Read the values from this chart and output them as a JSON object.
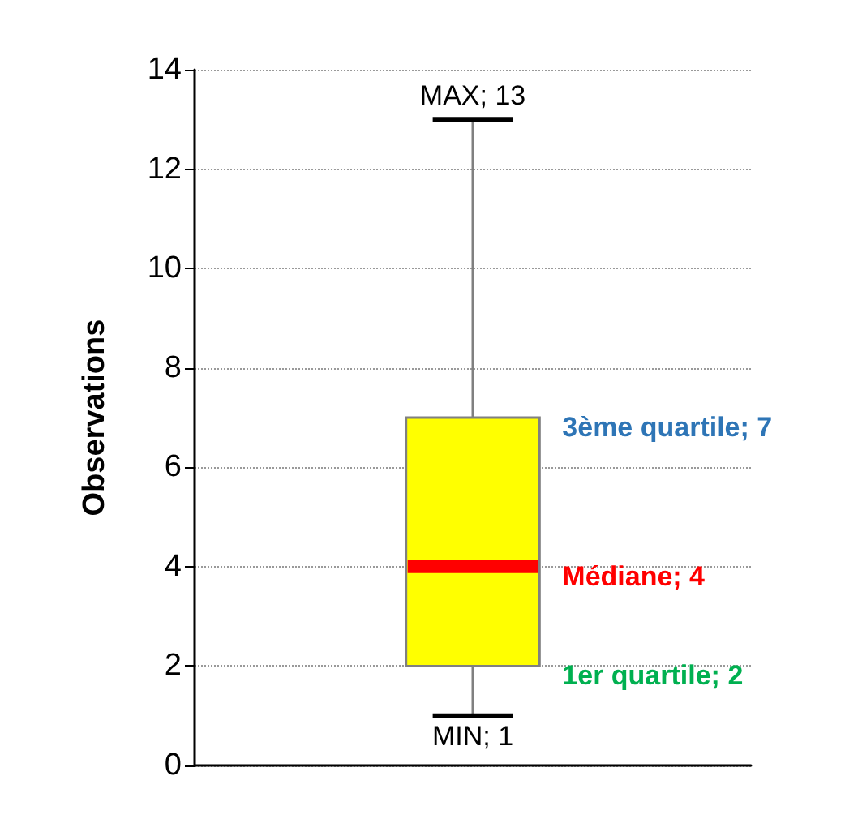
{
  "chart_data": {
    "type": "box",
    "ylabel": "Observations",
    "categories": [
      null
    ],
    "color": "#ffff00",
    "boxes": [
      {
        "low": 1,
        "q1": 2,
        "median": 4,
        "q3": 7,
        "high": 13
      }
    ],
    "ylim": [
      0,
      14
    ],
    "yticks": [
      0,
      2,
      4,
      6,
      8,
      10,
      12,
      14
    ],
    "grid": "y",
    "annotations": [
      "MAX; 13",
      "3ème quartile; 7",
      "Médiane; 4",
      "1er quartile; 2",
      "MIN; 1"
    ]
  }
}
